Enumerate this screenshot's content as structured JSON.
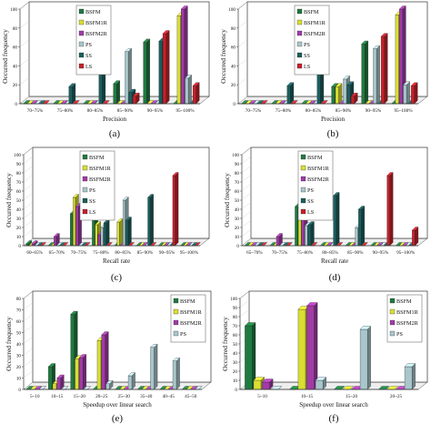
{
  "series_colors": [
    "#1f7a3f",
    "#d9de32",
    "#a23aa8",
    "#a8c6cc",
    "#1b5e5e",
    "#c8202a"
  ],
  "chart_data": [
    {
      "type": "bar",
      "panel_label": "(a)",
      "categories": [
        "70~75%",
        "75~80%",
        "80~85%",
        "85~90%",
        "90~95%",
        "95~100%"
      ],
      "xlabel": "Precision",
      "ylabel": "Occurred frequency",
      "ylim": [
        0,
        100
      ],
      "yticks": [
        0,
        20,
        40,
        60,
        80,
        100
      ],
      "grid": false,
      "legend": "top-left",
      "series": [
        {
          "name": "BSFM",
          "values": [
            0,
            0,
            0,
            21,
            65,
            0
          ]
        },
        {
          "name": "BSFM1R",
          "values": [
            0,
            0,
            0,
            0,
            0,
            93
          ]
        },
        {
          "name": "BSFM2R",
          "values": [
            0,
            0,
            0,
            0,
            0,
            100
          ]
        },
        {
          "name": "PS",
          "values": [
            0,
            0,
            0,
            55,
            0,
            27
          ]
        },
        {
          "name": "SS",
          "values": [
            0,
            18,
            55,
            12,
            66,
            0
          ]
        },
        {
          "name": "LS",
          "values": [
            0,
            0,
            0,
            8,
            74,
            19
          ]
        }
      ]
    },
    {
      "type": "bar",
      "panel_label": "(b)",
      "categories": [
        "70~75%",
        "75~80%",
        "80~85%",
        "85~90%",
        "90~95%",
        "95~100%"
      ],
      "xlabel": "Precision",
      "ylabel": "Occurred frequency",
      "ylim": [
        0,
        100
      ],
      "yticks": [
        0,
        20,
        40,
        60,
        80,
        100
      ],
      "grid": false,
      "legend": "top-left",
      "series": [
        {
          "name": "BSFM",
          "values": [
            0,
            0,
            0,
            18,
            63,
            0
          ]
        },
        {
          "name": "BSFM1R",
          "values": [
            0,
            0,
            0,
            18,
            0,
            94
          ]
        },
        {
          "name": "BSFM2R",
          "values": [
            0,
            0,
            0,
            0,
            0,
            100
          ]
        },
        {
          "name": "PS",
          "values": [
            0,
            0,
            0,
            26,
            58,
            20
          ]
        },
        {
          "name": "SS",
          "values": [
            0,
            19,
            56,
            20,
            0,
            0
          ]
        },
        {
          "name": "LS",
          "values": [
            0,
            0,
            0,
            8,
            71,
            19
          ]
        }
      ]
    },
    {
      "type": "bar",
      "panel_label": "(c)",
      "categories": [
        "60~65%",
        "65~70%",
        "70~75%",
        "75~80%",
        "80~85%",
        "85~90%",
        "90~95%",
        "95~100%"
      ],
      "xlabel": "Recall rate",
      "ylabel": "Occurred frequency",
      "ylim": [
        0,
        100
      ],
      "yticks": [
        0,
        10,
        20,
        30,
        40,
        50,
        60,
        70,
        80,
        90,
        100
      ],
      "grid": false,
      "legend": "top-left",
      "series": [
        {
          "name": "BSFM",
          "values": [
            2,
            0,
            35,
            30,
            0,
            0,
            0,
            0
          ]
        },
        {
          "name": "BSFM1R",
          "values": [
            0,
            0,
            53,
            23,
            26,
            0,
            0,
            0
          ]
        },
        {
          "name": "BSFM2R",
          "values": [
            2,
            10,
            43,
            12,
            0,
            0,
            0,
            0
          ]
        },
        {
          "name": "PS",
          "values": [
            0,
            0,
            0,
            20,
            50,
            0,
            0,
            0
          ]
        },
        {
          "name": "SS",
          "values": [
            0,
            0,
            0,
            25,
            28,
            53,
            0,
            0
          ]
        },
        {
          "name": "LS",
          "values": [
            0,
            0,
            0,
            0,
            0,
            0,
            77,
            0
          ]
        }
      ]
    },
    {
      "type": "bar",
      "panel_label": "(d)",
      "categories": [
        "65~70%",
        "70~75%",
        "75~80%",
        "80~85%",
        "85~90%",
        "90~95%",
        "95~100%"
      ],
      "xlabel": "Recall rate",
      "ylabel": "Occurred frequency",
      "ylim": [
        0,
        100
      ],
      "yticks": [
        0,
        10,
        20,
        30,
        40,
        50,
        60,
        70,
        80,
        90,
        100
      ],
      "grid": false,
      "legend": "top-left",
      "series": [
        {
          "name": "BSFM",
          "values": [
            0,
            0,
            43,
            0,
            0,
            0,
            0
          ]
        },
        {
          "name": "BSFM1R",
          "values": [
            0,
            0,
            50,
            0,
            0,
            0,
            0
          ]
        },
        {
          "name": "BSFM2R",
          "values": [
            0,
            10,
            53,
            0,
            0,
            0,
            0
          ]
        },
        {
          "name": "PS",
          "values": [
            0,
            0,
            22,
            0,
            20,
            0,
            0
          ]
        },
        {
          "name": "SS",
          "values": [
            0,
            0,
            23,
            55,
            40,
            0,
            0
          ]
        },
        {
          "name": "LS",
          "values": [
            0,
            0,
            0,
            0,
            0,
            77,
            17
          ]
        }
      ]
    },
    {
      "type": "bar",
      "panel_label": "(e)",
      "categories": [
        "5~10",
        "10~15",
        "15~20",
        "20~25",
        "25~30",
        "35~40",
        "40~45",
        "45~50"
      ],
      "xlabel": "Speedup over linear search",
      "ylabel": "Occurred frequency",
      "ylim": [
        0,
        80
      ],
      "yticks": [
        0,
        10,
        20,
        30,
        40,
        50,
        60,
        70,
        80
      ],
      "grid": false,
      "legend": "top-right",
      "series": [
        {
          "name": "BSFM",
          "values": [
            0,
            20,
            66,
            0,
            0,
            0,
            0,
            0
          ]
        },
        {
          "name": "BSFM1R",
          "values": [
            0,
            5,
            27,
            43,
            0,
            0,
            0,
            0
          ]
        },
        {
          "name": "BSFM2R",
          "values": [
            0,
            10,
            28,
            48,
            0,
            0,
            0,
            0
          ]
        },
        {
          "name": "PS",
          "values": [
            0,
            0,
            0,
            5,
            12,
            37,
            25,
            0
          ]
        }
      ]
    },
    {
      "type": "bar",
      "panel_label": "(f)",
      "categories": [
        "5~10",
        "10~15",
        "15~20",
        "20~25"
      ],
      "xlabel": "Speedup over linear search",
      "ylabel": "Occurred frequency",
      "ylim": [
        0,
        100
      ],
      "yticks": [
        0,
        10,
        20,
        30,
        40,
        50,
        60,
        70,
        80,
        90,
        100
      ],
      "grid": false,
      "legend": "top-right",
      "series": [
        {
          "name": "BSFM",
          "values": [
            70,
            0,
            0,
            0
          ]
        },
        {
          "name": "BSFM1R",
          "values": [
            10,
            88,
            0,
            0
          ]
        },
        {
          "name": "BSFM2R",
          "values": [
            8,
            92,
            0,
            0
          ]
        },
        {
          "name": "PS",
          "values": [
            0,
            10,
            66,
            25
          ]
        }
      ]
    }
  ]
}
